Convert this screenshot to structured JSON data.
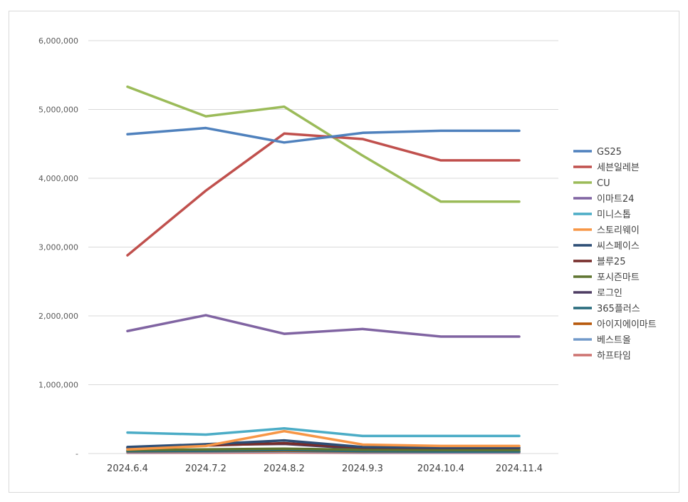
{
  "chart_data": {
    "type": "line",
    "title": "",
    "xlabel": "",
    "ylabel": "",
    "categories": [
      "2024.6.4",
      "2024.7.2",
      "2024.8.2",
      "2024.9.3",
      "2024.10.4",
      "2024.11.4"
    ],
    "ylim": [
      0,
      6000000
    ],
    "yticks": [
      0,
      1000000,
      2000000,
      3000000,
      4000000,
      5000000,
      6000000
    ],
    "ytick_labels": [
      "-",
      "1,000,000",
      "2,000,000",
      "3,000,000",
      "4,000,000",
      "5,000,000",
      "6,000,000"
    ],
    "grid": true,
    "legend": "right",
    "series": [
      {
        "name": "GS25",
        "color": "#4f81bd",
        "values": [
          4640000,
          4730000,
          4520000,
          4660000,
          4690000,
          4690000
        ]
      },
      {
        "name": "세븐일레븐",
        "color": "#c0504d",
        "values": [
          2880000,
          3820000,
          4650000,
          4570000,
          4260000,
          4260000
        ]
      },
      {
        "name": "CU",
        "color": "#9bbb59",
        "values": [
          5330000,
          4900000,
          5040000,
          4330000,
          3660000,
          3660000
        ]
      },
      {
        "name": "이마트24",
        "color": "#8064a2",
        "values": [
          1780000,
          2010000,
          1740000,
          1810000,
          1700000,
          1700000
        ]
      },
      {
        "name": "미니스톱",
        "color": "#4bacc6",
        "values": [
          305000,
          275000,
          365000,
          255000,
          255000,
          255000
        ]
      },
      {
        "name": "스토리웨이",
        "color": "#f79646",
        "values": [
          60000,
          110000,
          325000,
          130000,
          110000,
          110000
        ]
      },
      {
        "name": "씨스페이스",
        "color": "#2c4d75",
        "values": [
          95000,
          135000,
          190000,
          95000,
          85000,
          85000
        ]
      },
      {
        "name": "블루25",
        "color": "#772c2a",
        "values": [
          80000,
          115000,
          150000,
          85000,
          80000,
          80000
        ]
      },
      {
        "name": "포시즌마트",
        "color": "#5f7530",
        "values": [
          50000,
          60000,
          70000,
          55000,
          50000,
          50000
        ]
      },
      {
        "name": "로그인",
        "color": "#4d3b62",
        "values": [
          90000,
          125000,
          140000,
          70000,
          60000,
          60000
        ]
      },
      {
        "name": "365플러스",
        "color": "#276a7c",
        "values": [
          35000,
          40000,
          50000,
          35000,
          30000,
          30000
        ]
      },
      {
        "name": "아이지에이마트",
        "color": "#b65708",
        "values": [
          30000,
          35000,
          40000,
          30000,
          28000,
          28000
        ]
      },
      {
        "name": "베스트올",
        "color": "#729aca",
        "values": [
          20000,
          25000,
          30000,
          20000,
          18000,
          18000
        ]
      },
      {
        "name": "하프타임",
        "color": "#cd7371",
        "values": [
          10000,
          12000,
          15000,
          10000,
          10000,
          10000
        ]
      }
    ]
  }
}
